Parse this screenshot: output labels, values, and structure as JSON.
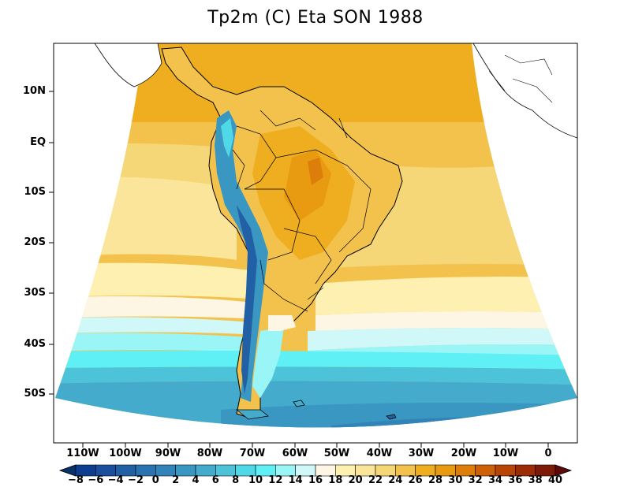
{
  "title": "Tp2m (C) Eta SON 1988",
  "lat_labels": [
    "10N",
    "EQ",
    "10S",
    "20S",
    "30S",
    "40S",
    "50S"
  ],
  "lon_labels": [
    "110W",
    "100W",
    "90W",
    "80W",
    "70W",
    "60W",
    "50W",
    "40W",
    "30W",
    "20W",
    "10W",
    "0"
  ],
  "colorbar": {
    "labels": [
      "−8",
      "−6",
      "−4",
      "−2",
      "0",
      "2",
      "4",
      "6",
      "8",
      "10",
      "12",
      "14",
      "16",
      "18",
      "20",
      "22",
      "24",
      "26",
      "28",
      "30",
      "32",
      "34",
      "36",
      "38",
      "40"
    ],
    "colors": [
      "#08306b",
      "#0d3d8f",
      "#1a4f9e",
      "#2260a6",
      "#2a72b0",
      "#3284b8",
      "#3a97c2",
      "#45abcc",
      "#4cc3d8",
      "#4fd8e6",
      "#5ef0f4",
      "#9af6f6",
      "#d0f8f8",
      "#fef6e4",
      "#fdf0b0",
      "#fae59a",
      "#f6d778",
      "#f2c24c",
      "#efae20",
      "#e89a10",
      "#de7e0a",
      "#ce6008",
      "#b84406",
      "#9c2c06",
      "#7e1a08",
      "#5e0a0a"
    ]
  }
}
